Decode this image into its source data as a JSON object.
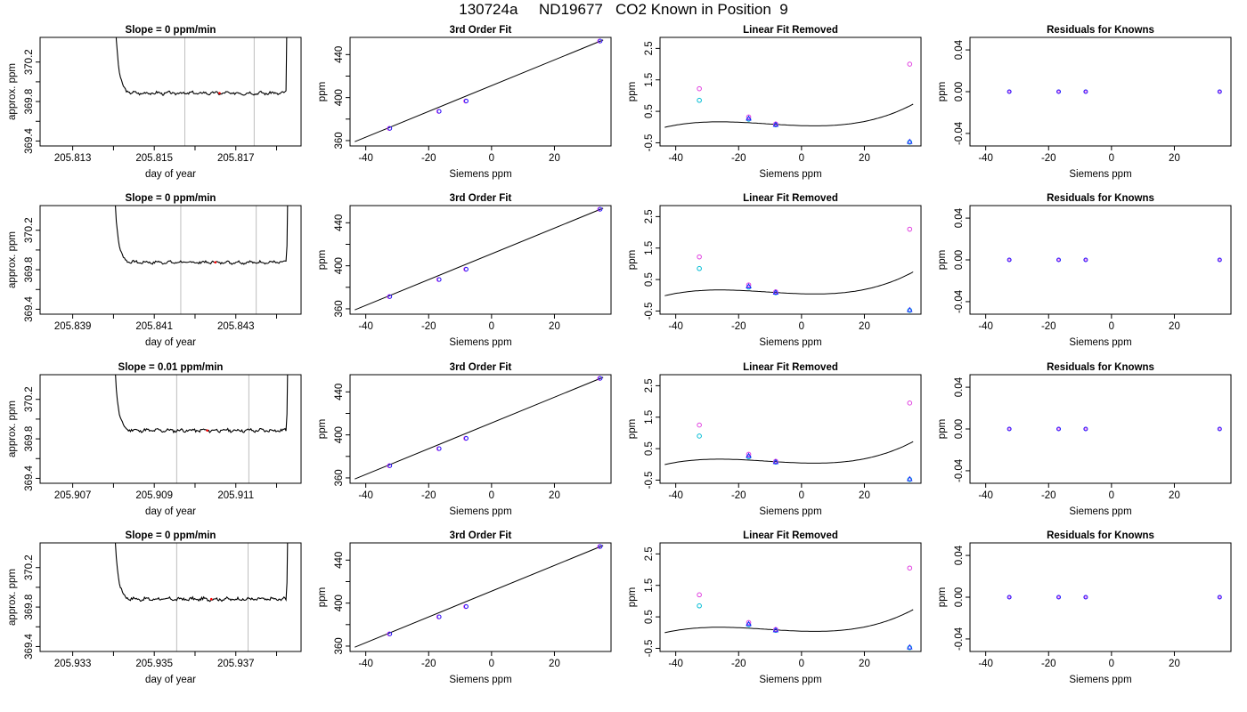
{
  "page_title": "130724a     ND19677   CO2 Known in Position  9",
  "colors": {
    "line": "#000000",
    "vline": "#bebebe",
    "cyan": "#00bcd4",
    "magenta": "#e040e0",
    "blue": "#1a1aff",
    "red": "#ff0000"
  },
  "chart_data": [
    {
      "type": "line",
      "column": "trace",
      "row": 0,
      "title": "Slope =  0  ppm/min",
      "xlabel": "day of year",
      "ylabel": "approx. ppm",
      "xlim": [
        205.8122,
        205.8186
      ],
      "ylim": [
        369.35,
        370.45
      ],
      "x_ticks": [
        205.813,
        205.814,
        205.815,
        205.816,
        205.817,
        205.818
      ],
      "x_tick_labels": [
        "205.813",
        "",
        "205.815",
        "",
        "205.817",
        ""
      ],
      "y_ticks": [
        369.4,
        369.6,
        369.8,
        370.0,
        370.2
      ],
      "y_tick_labels": [
        "369.4",
        "",
        "369.8",
        "",
        "370.2"
      ],
      "start": 205.81395,
      "end": 205.81823,
      "plateau": 369.885,
      "noise": 0.012,
      "vlines": [
        205.81575,
        205.81745
      ],
      "marker_x": 205.8166,
      "seed": 3
    },
    {
      "type": "line",
      "column": "fit",
      "row": 0,
      "title": "3rd Order Fit",
      "xlabel": "Siemens ppm",
      "ylabel": "ppm",
      "xlim": [
        -45,
        38
      ],
      "ylim": [
        355,
        456
      ],
      "x_ticks": [
        -40,
        -20,
        0,
        20
      ],
      "x_tick_labels": [
        "-40",
        "-20",
        "0",
        "20"
      ],
      "y_ticks": [
        360,
        380,
        400,
        420,
        440
      ],
      "y_tick_labels": [
        "360",
        "",
        "400",
        "",
        "440"
      ],
      "points": [
        [
          -32.5,
          371.3
        ],
        [
          -16.8,
          387.2
        ],
        [
          -8.2,
          396.8
        ],
        [
          34.4,
          452.6
        ]
      ],
      "fit_x": [
        -43.5,
        35.5
      ],
      "fit_y": [
        359.0,
        453.6
      ]
    },
    {
      "type": "scatter",
      "column": "linear_removed",
      "row": 0,
      "title": "Linear Fit Removed",
      "xlabel": "Siemens ppm",
      "ylabel": "ppm",
      "xlim": [
        -45,
        38
      ],
      "ylim": [
        -0.6,
        2.85
      ],
      "x_ticks": [
        -40,
        -20,
        0,
        20
      ],
      "x_tick_labels": [
        "-40",
        "-20",
        "0",
        "20"
      ],
      "y_ticks": [
        -0.5,
        0.5,
        1.5,
        2.5
      ],
      "y_tick_labels": [
        "-0.5",
        "0.5",
        "1.5",
        "2.5"
      ],
      "curve_coeffs": [
        0.0455,
        -0.00305,
        0.000302,
        9.2e-06
      ],
      "curve_x": [
        -43.5,
        35.5
      ],
      "points_cyan": [
        [
          -32.5,
          0.85
        ],
        [
          -16.8,
          0.25
        ],
        [
          -8.2,
          0.07
        ],
        [
          34.4,
          -0.48
        ]
      ],
      "points_magenta": [
        [
          -32.5,
          1.22
        ],
        [
          -16.8,
          0.32
        ],
        [
          -8.2,
          0.1
        ],
        [
          34.4,
          2.0
        ]
      ],
      "points_blue": [
        [
          -16.8,
          0.28
        ],
        [
          -8.2,
          0.08
        ],
        [
          34.4,
          -0.46
        ]
      ]
    },
    {
      "type": "scatter",
      "column": "residuals",
      "row": 0,
      "title": "Residuals for Knowns",
      "xlabel": "Siemens ppm",
      "ylabel": "ppm",
      "xlim": [
        -45,
        38
      ],
      "ylim": [
        -0.052,
        0.052
      ],
      "x_ticks": [
        -40,
        -20,
        0,
        20
      ],
      "x_tick_labels": [
        "-40",
        "-20",
        "0",
        "20"
      ],
      "y_ticks": [
        -0.04,
        0.0,
        0.04
      ],
      "y_tick_labels": [
        "-0.04",
        "0.00",
        "0.04"
      ],
      "points": [
        [
          -32.5,
          0
        ],
        [
          -16.8,
          0
        ],
        [
          -8.2,
          0
        ],
        [
          34.4,
          0
        ]
      ]
    },
    {
      "type": "line",
      "column": "trace",
      "row": 1,
      "title": "Slope =  0  ppm/min",
      "xlabel": "day of year",
      "ylabel": "approx. ppm",
      "xlim": [
        205.8382,
        205.8446
      ],
      "ylim": [
        369.35,
        370.45
      ],
      "x_ticks": [
        205.839,
        205.84,
        205.841,
        205.842,
        205.843,
        205.844
      ],
      "x_tick_labels": [
        "205.839",
        "",
        "205.841",
        "",
        "205.843",
        ""
      ],
      "y_ticks": [
        369.4,
        369.6,
        369.8,
        370.0,
        370.2
      ],
      "y_tick_labels": [
        "369.4",
        "",
        "369.8",
        "",
        "370.2"
      ],
      "start": 205.83993,
      "end": 205.84425,
      "plateau": 369.875,
      "noise": 0.011,
      "vlines": [
        205.84165,
        205.8435
      ],
      "marker_x": 205.8425,
      "seed": 7
    },
    {
      "type": "line",
      "column": "fit",
      "row": 1,
      "title": "3rd Order Fit",
      "xlabel": "Siemens ppm",
      "ylabel": "ppm",
      "xlim": [
        -45,
        38
      ],
      "ylim": [
        355,
        456
      ],
      "x_ticks": [
        -40,
        -20,
        0,
        20
      ],
      "x_tick_labels": [
        "-40",
        "-20",
        "0",
        "20"
      ],
      "y_ticks": [
        360,
        380,
        400,
        420,
        440
      ],
      "y_tick_labels": [
        "360",
        "",
        "400",
        "",
        "440"
      ],
      "points": [
        [
          -32.5,
          371.3
        ],
        [
          -16.8,
          387.2
        ],
        [
          -8.2,
          396.8
        ],
        [
          34.4,
          452.6
        ]
      ],
      "fit_x": [
        -43.5,
        35.5
      ],
      "fit_y": [
        359.0,
        453.6
      ]
    },
    {
      "type": "scatter",
      "column": "linear_removed",
      "row": 1,
      "title": "Linear Fit Removed",
      "xlabel": "Siemens ppm",
      "ylabel": "ppm",
      "xlim": [
        -45,
        38
      ],
      "ylim": [
        -0.6,
        2.85
      ],
      "x_ticks": [
        -40,
        -20,
        0,
        20
      ],
      "x_tick_labels": [
        "-40",
        "-20",
        "0",
        "20"
      ],
      "y_ticks": [
        -0.5,
        0.5,
        1.5,
        2.5
      ],
      "y_tick_labels": [
        "-0.5",
        "0.5",
        "1.5",
        "2.5"
      ],
      "curve_coeffs": [
        0.048,
        -0.0031,
        0.000305,
        9.4e-06
      ],
      "curve_x": [
        -43.5,
        35.5
      ],
      "points_cyan": [
        [
          -32.5,
          0.85
        ],
        [
          -16.8,
          0.26
        ],
        [
          -8.2,
          0.08
        ],
        [
          34.4,
          -0.48
        ]
      ],
      "points_magenta": [
        [
          -32.5,
          1.22
        ],
        [
          -16.8,
          0.33
        ],
        [
          -8.2,
          0.11
        ],
        [
          34.4,
          2.1
        ]
      ],
      "points_blue": [
        [
          -16.8,
          0.29
        ],
        [
          -8.2,
          0.09
        ],
        [
          34.4,
          -0.46
        ]
      ]
    },
    {
      "type": "scatter",
      "column": "residuals",
      "row": 1,
      "title": "Residuals for Knowns",
      "xlabel": "Siemens ppm",
      "ylabel": "ppm",
      "xlim": [
        -45,
        38
      ],
      "ylim": [
        -0.052,
        0.052
      ],
      "x_ticks": [
        -40,
        -20,
        0,
        20
      ],
      "x_tick_labels": [
        "-40",
        "-20",
        "0",
        "20"
      ],
      "y_ticks": [
        -0.04,
        0.0,
        0.04
      ],
      "y_tick_labels": [
        "-0.04",
        "0.00",
        "0.04"
      ],
      "points": [
        [
          -32.5,
          0
        ],
        [
          -16.8,
          0
        ],
        [
          -8.2,
          0
        ],
        [
          34.4,
          0
        ]
      ]
    },
    {
      "type": "line",
      "column": "trace",
      "row": 2,
      "title": "Slope =  0.01  ppm/min",
      "xlabel": "day of year",
      "ylabel": "approx. ppm",
      "xlim": [
        205.9062,
        205.9126
      ],
      "ylim": [
        369.35,
        370.45
      ],
      "x_ticks": [
        205.907,
        205.908,
        205.909,
        205.91,
        205.911,
        205.912
      ],
      "x_tick_labels": [
        "205.907",
        "",
        "205.909",
        "",
        "205.911",
        ""
      ],
      "y_ticks": [
        369.4,
        369.6,
        369.8,
        370.0,
        370.2
      ],
      "y_tick_labels": [
        "369.4",
        "",
        "369.8",
        "",
        "370.2"
      ],
      "start": 205.90793,
      "end": 205.91225,
      "plateau": 369.885,
      "noise": 0.013,
      "vlines": [
        205.90955,
        205.91132
      ],
      "marker_x": 205.9103,
      "seed": 11
    },
    {
      "type": "line",
      "column": "fit",
      "row": 2,
      "title": "3rd Order Fit",
      "xlabel": "Siemens ppm",
      "ylabel": "ppm",
      "xlim": [
        -45,
        38
      ],
      "ylim": [
        355,
        456
      ],
      "x_ticks": [
        -40,
        -20,
        0,
        20
      ],
      "x_tick_labels": [
        "-40",
        "-20",
        "0",
        "20"
      ],
      "y_ticks": [
        360,
        380,
        400,
        420,
        440
      ],
      "y_tick_labels": [
        "360",
        "",
        "400",
        "",
        "440"
      ],
      "points": [
        [
          -32.5,
          371.3
        ],
        [
          -16.8,
          387.2
        ],
        [
          -8.2,
          396.8
        ],
        [
          34.4,
          452.6
        ]
      ],
      "fit_x": [
        -43.5,
        35.5
      ],
      "fit_y": [
        359.0,
        453.6
      ]
    },
    {
      "type": "scatter",
      "column": "linear_removed",
      "row": 2,
      "title": "Linear Fit Removed",
      "xlabel": "Siemens ppm",
      "ylabel": "ppm",
      "xlim": [
        -45,
        38
      ],
      "ylim": [
        -0.6,
        2.85
      ],
      "x_ticks": [
        -40,
        -20,
        0,
        20
      ],
      "x_tick_labels": [
        "-40",
        "-20",
        "0",
        "20"
      ],
      "y_ticks": [
        -0.5,
        0.5,
        1.5,
        2.5
      ],
      "y_tick_labels": [
        "-0.5",
        "0.5",
        "1.5",
        "2.5"
      ],
      "curve_coeffs": [
        0.045,
        -0.003,
        0.0003,
        9.1e-06
      ],
      "curve_x": [
        -43.5,
        35.5
      ],
      "points_cyan": [
        [
          -32.5,
          0.9
        ],
        [
          -16.8,
          0.24
        ],
        [
          -8.2,
          0.07
        ],
        [
          34.4,
          -0.48
        ]
      ],
      "points_magenta": [
        [
          -32.5,
          1.25
        ],
        [
          -16.8,
          0.32
        ],
        [
          -8.2,
          0.1
        ],
        [
          34.4,
          1.95
        ]
      ],
      "points_blue": [
        [
          -16.8,
          0.28
        ],
        [
          -8.2,
          0.08
        ],
        [
          34.4,
          -0.46
        ]
      ]
    },
    {
      "type": "scatter",
      "column": "residuals",
      "row": 2,
      "title": "Residuals for Knowns",
      "xlabel": "Siemens ppm",
      "ylabel": "ppm",
      "xlim": [
        -45,
        38
      ],
      "ylim": [
        -0.052,
        0.052
      ],
      "x_ticks": [
        -40,
        -20,
        0,
        20
      ],
      "x_tick_labels": [
        "-40",
        "-20",
        "0",
        "20"
      ],
      "y_ticks": [
        -0.04,
        0.0,
        0.04
      ],
      "y_tick_labels": [
        "-0.04",
        "0.00",
        "0.04"
      ],
      "points": [
        [
          -32.5,
          0
        ],
        [
          -16.8,
          0
        ],
        [
          -8.2,
          0
        ],
        [
          34.4,
          0
        ]
      ]
    },
    {
      "type": "line",
      "column": "trace",
      "row": 3,
      "title": "Slope =  0  ppm/min",
      "xlabel": "day of year",
      "ylabel": "approx. ppm",
      "xlim": [
        205.9322,
        205.9386
      ],
      "ylim": [
        369.35,
        370.45
      ],
      "x_ticks": [
        205.933,
        205.934,
        205.935,
        205.936,
        205.937,
        205.938
      ],
      "x_tick_labels": [
        "205.933",
        "",
        "205.935",
        "",
        "205.937",
        ""
      ],
      "y_ticks": [
        369.4,
        369.6,
        369.8,
        370.0,
        370.2
      ],
      "y_tick_labels": [
        "369.4",
        "",
        "369.8",
        "",
        "370.2"
      ],
      "start": 205.93393,
      "end": 205.93825,
      "plateau": 369.88,
      "noise": 0.013,
      "vlines": [
        205.93555,
        205.9373
      ],
      "marker_x": 205.9364,
      "seed": 17
    },
    {
      "type": "line",
      "column": "fit",
      "row": 3,
      "title": "3rd Order Fit",
      "xlabel": "Siemens ppm",
      "ylabel": "ppm",
      "xlim": [
        -45,
        38
      ],
      "ylim": [
        355,
        456
      ],
      "x_ticks": [
        -40,
        -20,
        0,
        20
      ],
      "x_tick_labels": [
        "-40",
        "-20",
        "0",
        "20"
      ],
      "y_ticks": [
        360,
        380,
        400,
        420,
        440
      ],
      "y_tick_labels": [
        "360",
        "",
        "400",
        "",
        "440"
      ],
      "points": [
        [
          -32.5,
          371.3
        ],
        [
          -16.8,
          387.2
        ],
        [
          -8.2,
          396.8
        ],
        [
          34.4,
          452.6
        ]
      ],
      "fit_x": [
        -43.5,
        35.5
      ],
      "fit_y": [
        359.0,
        453.6
      ]
    },
    {
      "type": "scatter",
      "column": "linear_removed",
      "row": 3,
      "title": "Linear Fit Removed",
      "xlabel": "Siemens ppm",
      "ylabel": "ppm",
      "xlim": [
        -45,
        38
      ],
      "ylim": [
        -0.6,
        2.85
      ],
      "x_ticks": [
        -40,
        -20,
        0,
        20
      ],
      "x_tick_labels": [
        "-40",
        "-20",
        "0",
        "20"
      ],
      "y_ticks": [
        -0.5,
        0.5,
        1.5,
        2.5
      ],
      "y_tick_labels": [
        "-0.5",
        "0.5",
        "1.5",
        "2.5"
      ],
      "curve_coeffs": [
        0.046,
        -0.0031,
        0.000303,
        9.2e-06
      ],
      "curve_x": [
        -43.5,
        35.5
      ],
      "points_cyan": [
        [
          -32.5,
          0.85
        ],
        [
          -16.8,
          0.25
        ],
        [
          -8.2,
          0.07
        ],
        [
          34.4,
          -0.48
        ]
      ],
      "points_magenta": [
        [
          -32.5,
          1.2
        ],
        [
          -16.8,
          0.32
        ],
        [
          -8.2,
          0.1
        ],
        [
          34.4,
          2.05
        ]
      ],
      "points_blue": [
        [
          -16.8,
          0.28
        ],
        [
          -8.2,
          0.08
        ],
        [
          34.4,
          -0.46
        ]
      ]
    },
    {
      "type": "scatter",
      "column": "residuals",
      "row": 3,
      "title": "Residuals for Knowns",
      "xlabel": "Siemens ppm",
      "ylabel": "ppm",
      "xlim": [
        -45,
        38
      ],
      "ylim": [
        -0.052,
        0.052
      ],
      "x_ticks": [
        -40,
        -20,
        0,
        20
      ],
      "x_tick_labels": [
        "-40",
        "-20",
        "0",
        "20"
      ],
      "y_ticks": [
        -0.04,
        0.0,
        0.04
      ],
      "y_tick_labels": [
        "-0.04",
        "0.00",
        "0.04"
      ],
      "points": [
        [
          -32.5,
          0
        ],
        [
          -16.8,
          0
        ],
        [
          -8.2,
          0
        ],
        [
          34.4,
          0
        ]
      ]
    }
  ]
}
